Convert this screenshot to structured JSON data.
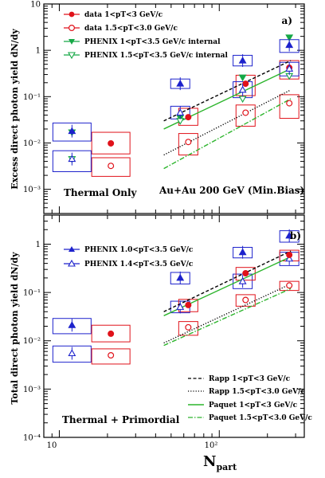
{
  "colors": {
    "data": "#e0121a",
    "phenix_top": "#16a846",
    "phenix_bottom": "#1d22cc",
    "rapp": "#000000",
    "paquet": "#2db52d"
  },
  "shared": {
    "xlabel_main": "N",
    "xlabel_sub": "part",
    "xtick_labels": [
      "10",
      "10²"
    ]
  },
  "chart_data": [
    {
      "type": "scatter",
      "panel": "a",
      "panel_label": "a)",
      "ylabel": "Excess direct photon yield dN/dy",
      "ytick_labels": [
        "10⁻³",
        "10⁻²",
        "10⁻¹",
        "1",
        "10"
      ],
      "xscale": "log",
      "yscale": "log",
      "xlim": [
        8,
        340
      ],
      "ylim": [
        0.0003,
        10
      ],
      "legend_placement": "top-left",
      "annotations": [
        "Au+Au 200 GeV (Min.Bias)",
        "Thermal Only"
      ],
      "series": [
        {
          "name": "data 1<pT<3 GeV/c",
          "marker": "filled-circle",
          "color": "#e0121a",
          "x": [
            21,
            64,
            146,
            274
          ],
          "y": [
            0.0098,
            0.036,
            0.19,
            0.42
          ],
          "syst_lo": [
            0.0058,
            0.024,
            0.105,
            0.24
          ],
          "syst_hi": [
            0.017,
            0.056,
            0.29,
            0.6
          ]
        },
        {
          "name": "data 1.5<pT<3.0 GeV/c",
          "marker": "open-circle",
          "color": "#e0121a",
          "x": [
            21,
            64,
            146,
            274
          ],
          "y": [
            0.0032,
            0.0105,
            0.045,
            0.072
          ],
          "syst_lo": [
            0.0019,
            0.0055,
            0.023,
            0.034
          ],
          "syst_hi": [
            0.0048,
            0.016,
            0.066,
            0.11
          ]
        },
        {
          "name": "PHENIX 1<pT<3.5 GeV/c internal",
          "marker": "filled-triangle-down",
          "color": "#16a846",
          "x": [
            12,
            57,
            140,
            274
          ],
          "y": [
            0.017,
            0.035,
            0.26,
            1.9
          ]
        },
        {
          "name": "PHENIX 1.5<pT<3.5 GeV/c internal",
          "marker": "open-triangle-down",
          "color": "#16a846",
          "x": [
            12,
            57,
            140,
            274
          ],
          "y": [
            0.0045,
            0.03,
            0.09,
            0.28
          ]
        },
        {
          "name": "",
          "marker": "filled-triangle-up",
          "color": "#1d22cc",
          "x": [
            12,
            57,
            140,
            274
          ],
          "y": [
            0.018,
            0.19,
            0.6,
            1.3
          ],
          "syst_lo": [
            0.011,
            0.15,
            0.46,
            0.9
          ],
          "syst_hi": [
            0.027,
            0.24,
            0.78,
            1.7
          ]
        },
        {
          "name": "",
          "marker": "open-triangle-up",
          "color": "#1d22cc",
          "x": [
            12,
            57,
            140,
            274
          ],
          "y": [
            0.0045,
            0.045,
            0.14,
            0.4
          ],
          "syst_lo": [
            0.0024,
            0.033,
            0.095,
            0.28
          ],
          "syst_hi": [
            0.0068,
            0.062,
            0.21,
            0.55
          ]
        }
      ],
      "curves": [
        {
          "name": "",
          "style": "dashed",
          "color": "#000000",
          "x": [
            45,
            280
          ],
          "y": [
            0.03,
            0.6
          ]
        },
        {
          "name": "",
          "style": "dotted",
          "color": "#000000",
          "x": [
            45,
            280
          ],
          "y": [
            0.0055,
            0.14
          ]
        },
        {
          "name": "",
          "style": "solid",
          "color": "#2db52d",
          "x": [
            45,
            280
          ],
          "y": [
            0.02,
            0.4
          ]
        },
        {
          "name": "",
          "style": "dashdot",
          "color": "#2db52d",
          "x": [
            45,
            280
          ],
          "y": [
            0.0028,
            0.09
          ]
        }
      ]
    },
    {
      "type": "scatter",
      "panel": "b",
      "panel_label": "b)",
      "ylabel": "Total direct photon yield dN/dy",
      "ytick_labels": [
        "10⁻⁴",
        "10⁻³",
        "10⁻²",
        "10⁻¹",
        "1"
      ],
      "xscale": "log",
      "yscale": "log",
      "xlim": [
        8,
        340
      ],
      "ylim": [
        0.0001,
        4
      ],
      "legend_placement": "top-left / bottom-right",
      "annotations": [
        "Thermal + Primordial"
      ],
      "series": [
        {
          "name": "PHENIX 1.0<pT<3.5 GeV/c",
          "marker": "filled-triangle-up",
          "color": "#1d22cc",
          "x": [
            12,
            57,
            140,
            274
          ],
          "y": [
            0.021,
            0.2,
            0.68,
            1.5
          ],
          "syst_lo": [
            0.014,
            0.15,
            0.52,
            1.1
          ],
          "syst_hi": [
            0.029,
            0.26,
            0.86,
            1.9
          ]
        },
        {
          "name": "PHENIX 1.4<pT<3.5 GeV/c",
          "marker": "open-triangle-up",
          "color": "#1d22cc",
          "x": [
            12,
            57,
            140,
            274
          ],
          "y": [
            0.0055,
            0.05,
            0.17,
            0.5
          ],
          "syst_lo": [
            0.0036,
            0.038,
            0.12,
            0.36
          ],
          "syst_hi": [
            0.0078,
            0.066,
            0.24,
            0.68
          ]
        },
        {
          "name": "",
          "marker": "filled-circle",
          "color": "#e0121a",
          "x": [
            21,
            64,
            146,
            274
          ],
          "y": [
            0.014,
            0.055,
            0.25,
            0.6
          ],
          "syst_lo": [
            0.0095,
            0.04,
            0.18,
            0.45
          ],
          "syst_hi": [
            0.021,
            0.072,
            0.33,
            0.75
          ]
        },
        {
          "name": "",
          "marker": "open-circle",
          "color": "#e0121a",
          "x": [
            21,
            64,
            146,
            274
          ],
          "y": [
            0.005,
            0.019,
            0.07,
            0.14
          ],
          "syst_lo": [
            0.0033,
            0.013,
            0.052,
            0.11
          ],
          "syst_hi": [
            0.0068,
            0.025,
            0.09,
            0.17
          ]
        }
      ],
      "curves": [
        {
          "name": "Rapp 1<pT<3 GeV/c",
          "style": "dashed",
          "color": "#000000",
          "x": [
            45,
            280
          ],
          "y": [
            0.04,
            0.72
          ]
        },
        {
          "name": "Rapp 1.5<pT<3.0 GeV/c",
          "style": "dotted",
          "color": "#000000",
          "x": [
            45,
            280
          ],
          "y": [
            0.009,
            0.15
          ]
        },
        {
          "name": "Paquet 1<pT<3 GeV/c",
          "style": "solid",
          "color": "#2db52d",
          "x": [
            45,
            280
          ],
          "y": [
            0.033,
            0.55
          ]
        },
        {
          "name": "Paquet 1.5<pT<3.0 GeV/c",
          "style": "dashdot",
          "color": "#2db52d",
          "x": [
            45,
            280
          ],
          "y": [
            0.008,
            0.12
          ]
        }
      ]
    }
  ]
}
